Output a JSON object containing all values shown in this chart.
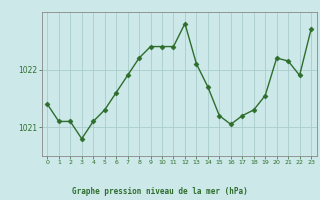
{
  "x": [
    0,
    1,
    2,
    3,
    4,
    5,
    6,
    7,
    8,
    9,
    10,
    11,
    12,
    13,
    14,
    15,
    16,
    17,
    18,
    19,
    20,
    21,
    22,
    23
  ],
  "y": [
    1021.4,
    1021.1,
    1021.1,
    1020.8,
    1021.1,
    1021.3,
    1021.6,
    1021.9,
    1022.2,
    1022.4,
    1022.4,
    1022.4,
    1022.8,
    1022.1,
    1021.7,
    1021.2,
    1021.05,
    1021.2,
    1021.3,
    1021.55,
    1022.2,
    1022.15,
    1021.9,
    1022.7
  ],
  "ylim": [
    1020.5,
    1023.0
  ],
  "yticks": [
    1021,
    1022
  ],
  "xlim": [
    -0.5,
    23.5
  ],
  "xticks": [
    0,
    1,
    2,
    3,
    4,
    5,
    6,
    7,
    8,
    9,
    10,
    11,
    12,
    13,
    14,
    15,
    16,
    17,
    18,
    19,
    20,
    21,
    22,
    23
  ],
  "line_color": "#2d6e2d",
  "marker_color": "#2d6e2d",
  "bg_color": "#cce8e8",
  "grid_color": "#aacccc",
  "axis_color": "#888888",
  "xlabel": "Graphe pression niveau de la mer (hPa)",
  "xlabel_color": "#2d6e2d",
  "tick_label_color": "#2d6e2d"
}
